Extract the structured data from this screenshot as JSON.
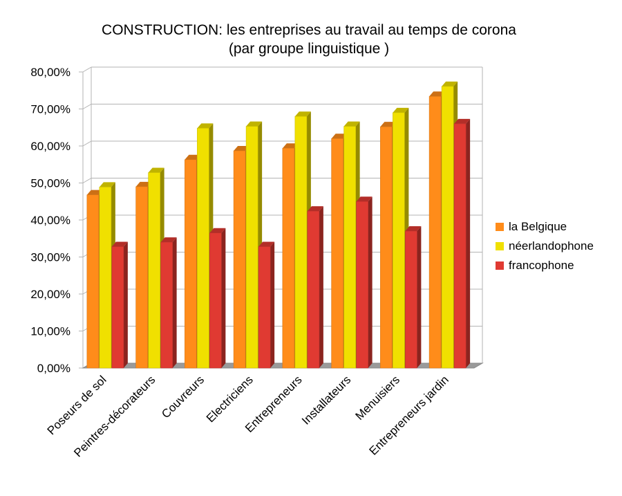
{
  "chart_data": {
    "type": "bar",
    "title": "CONSTRUCTION: les entreprises au travail au temps de corona",
    "subtitle": "(par groupe linguistique )",
    "xlabel": "",
    "ylabel": "",
    "categories": [
      "Poseurs de sol",
      "Peintres-décorateurs",
      "Couvreurs",
      "Electriciens",
      "Entrepreneurs",
      "Installateurs",
      "Menuisiers",
      "Entrepreneurs jardin"
    ],
    "series": [
      {
        "name": "la Belgique",
        "color": "#ff8c1a",
        "values": [
          0.468,
          0.49,
          0.563,
          0.587,
          0.594,
          0.62,
          0.652,
          0.734
        ]
      },
      {
        "name": "néerlandophone",
        "color": "#f0e000",
        "values": [
          0.489,
          0.528,
          0.648,
          0.653,
          0.68,
          0.653,
          0.69,
          0.761
        ]
      },
      {
        "name": "francophone",
        "color": "#e03a32",
        "values": [
          0.328,
          0.34,
          0.365,
          0.328,
          0.424,
          0.45,
          0.37,
          0.66
        ]
      }
    ],
    "ylim": [
      0,
      0.8
    ],
    "yticks": [
      0,
      0.1,
      0.2,
      0.3,
      0.4,
      0.5,
      0.6,
      0.7,
      0.8
    ],
    "ytick_labels": [
      "0,00%",
      "10,00%",
      "20,00%",
      "30,00%",
      "40,00%",
      "50,00%",
      "60,00%",
      "70,00%",
      "80,00%"
    ],
    "grid": true,
    "legend_position": "right",
    "style": "3d-bars"
  }
}
